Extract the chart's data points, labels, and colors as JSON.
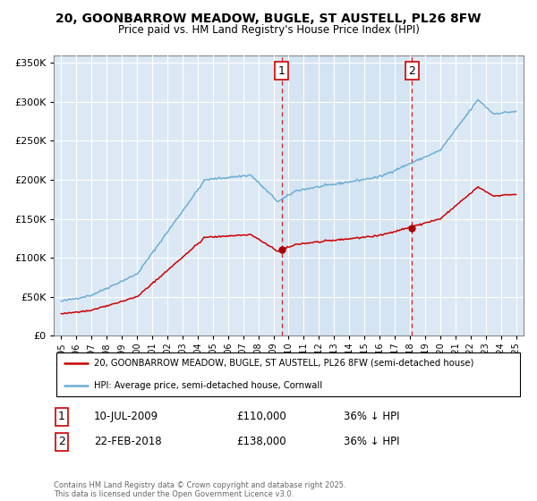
{
  "title": "20, GOONBARROW MEADOW, BUGLE, ST AUSTELL, PL26 8FW",
  "subtitle": "Price paid vs. HM Land Registry's House Price Index (HPI)",
  "background_color": "#ffffff",
  "plot_bg_color": "#dce9f5",
  "legend_entry1": "20, GOONBARROW MEADOW, BUGLE, ST AUSTELL, PL26 8FW (semi-detached house)",
  "legend_entry2": "HPI: Average price, semi-detached house, Cornwall",
  "marker1_label": "1",
  "marker1_date": "10-JUL-2009",
  "marker1_price": "£110,000",
  "marker1_hpi": "36% ↓ HPI",
  "marker1_x": 2009.53,
  "marker1_y": 110000,
  "marker2_label": "2",
  "marker2_date": "22-FEB-2018",
  "marker2_price": "£138,000",
  "marker2_hpi": "36% ↓ HPI",
  "marker2_x": 2018.14,
  "marker2_y": 138000,
  "footnote": "Contains HM Land Registry data © Crown copyright and database right 2025.\nThis data is licensed under the Open Government Licence v3.0.",
  "ylim": [
    0,
    360000
  ],
  "xlim": [
    1994.5,
    2025.5
  ],
  "yticks": [
    0,
    50000,
    100000,
    150000,
    200000,
    250000,
    300000,
    350000
  ],
  "xticks": [
    1995,
    1996,
    1997,
    1998,
    1999,
    2000,
    2001,
    2002,
    2003,
    2004,
    2005,
    2006,
    2007,
    2008,
    2009,
    2010,
    2011,
    2012,
    2013,
    2014,
    2015,
    2016,
    2017,
    2018,
    2019,
    2020,
    2021,
    2022,
    2023,
    2024,
    2025
  ],
  "hpi_color": "#6baed6",
  "price_color": "#cc0000",
  "vline_color": "#cc0000",
  "grid_color": "#ffffff",
  "marker_box_color": "#cc0000",
  "shade_color": "#cfe0f0"
}
